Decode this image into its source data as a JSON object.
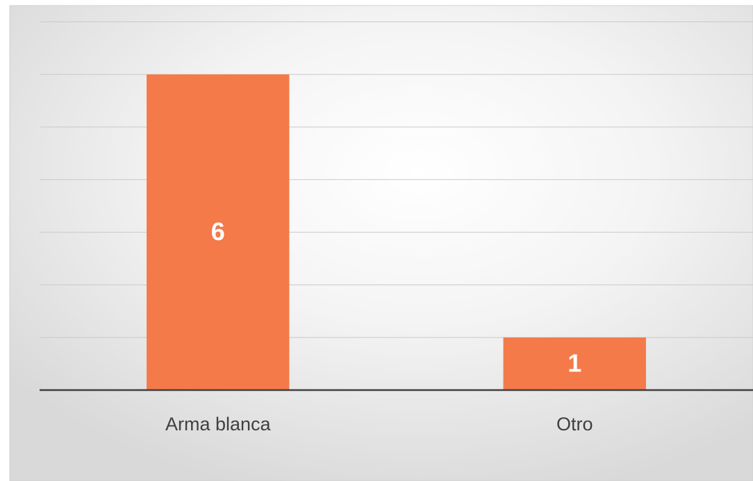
{
  "chart_data": {
    "type": "bar",
    "categories": [
      "Arma blanca",
      "Otro"
    ],
    "values": [
      6,
      1
    ],
    "color": "#f47a4a",
    "ylim": [
      0,
      7
    ],
    "yticks": [
      0,
      1,
      2,
      3,
      4,
      5,
      6,
      7
    ],
    "grid": true
  }
}
